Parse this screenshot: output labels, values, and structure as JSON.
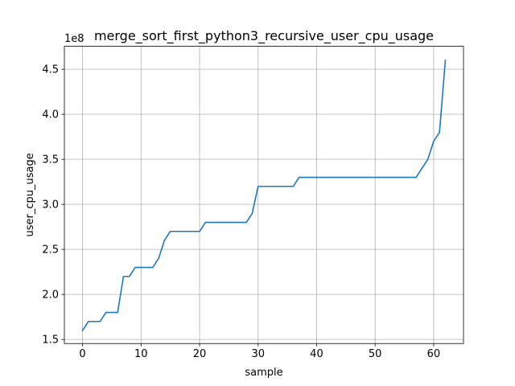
{
  "chart_data": {
    "type": "line",
    "title": "merge_sort_first_python3_recursive_user_cpu_usage",
    "xlabel": "sample",
    "ylabel": "user_cpu_usage",
    "y_offset_label": "1e8",
    "grid": true,
    "xlim": [
      -3.1,
      65.1
    ],
    "ylim": [
      1.455,
      4.755
    ],
    "x_ticks": [
      0,
      10,
      20,
      30,
      40,
      50,
      60
    ],
    "x_tick_labels": [
      "0",
      "10",
      "20",
      "30",
      "40",
      "50",
      "60"
    ],
    "y_ticks": [
      1.5,
      2.0,
      2.5,
      3.0,
      3.5,
      4.0,
      4.5
    ],
    "y_tick_labels": [
      "1.5",
      "2.0",
      "2.5",
      "3.0",
      "3.5",
      "4.0",
      "4.5"
    ],
    "color": "#1f77b4",
    "series": [
      {
        "x": [
          0,
          1,
          2,
          3,
          4,
          5,
          6,
          7,
          8,
          9,
          10,
          11,
          12,
          13,
          14,
          15,
          16,
          17,
          18,
          19,
          20,
          21,
          22,
          23,
          24,
          25,
          26,
          27,
          28,
          29,
          30,
          31,
          32,
          33,
          34,
          35,
          36,
          37,
          38,
          39,
          40,
          41,
          42,
          43,
          44,
          45,
          46,
          47,
          48,
          49,
          50,
          51,
          52,
          53,
          54,
          55,
          56,
          57,
          58,
          59,
          60,
          61,
          62
        ],
        "values": [
          1.6,
          1.7,
          1.7,
          1.7,
          1.8,
          1.8,
          1.8,
          2.2,
          2.2,
          2.3,
          2.3,
          2.3,
          2.3,
          2.4,
          2.6,
          2.7,
          2.7,
          2.7,
          2.7,
          2.7,
          2.7,
          2.8,
          2.8,
          2.8,
          2.8,
          2.8,
          2.8,
          2.8,
          2.8,
          2.9,
          3.2,
          3.2,
          3.2,
          3.2,
          3.2,
          3.2,
          3.2,
          3.3,
          3.3,
          3.3,
          3.3,
          3.3,
          3.3,
          3.3,
          3.3,
          3.3,
          3.3,
          3.3,
          3.3,
          3.3,
          3.3,
          3.3,
          3.3,
          3.3,
          3.3,
          3.3,
          3.3,
          3.3,
          3.4,
          3.5,
          3.7,
          3.8,
          4.6
        ]
      }
    ]
  }
}
